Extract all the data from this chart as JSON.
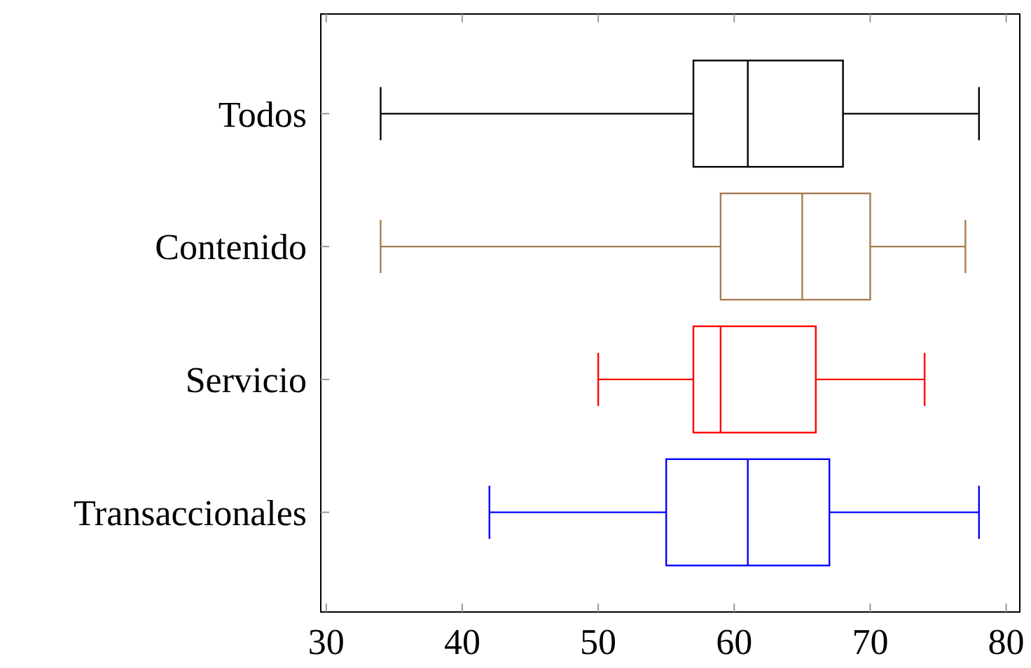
{
  "chart_data": {
    "type": "box",
    "orientation": "horizontal",
    "categories": [
      "Todos",
      "Contenido",
      "Servicio",
      "Transaccionales"
    ],
    "series": [
      {
        "color": "#000000",
        "boxes": [
          {
            "low": 34,
            "q1": 57,
            "median": 61,
            "q3": 68,
            "high": 78
          },
          null,
          null,
          null
        ]
      },
      {
        "color": "#a67c52",
        "boxes": [
          null,
          {
            "low": 34,
            "q1": 59,
            "median": 65,
            "q3": 70,
            "high": 77
          },
          null,
          null
        ]
      },
      {
        "color": "#ff0000",
        "boxes": [
          null,
          null,
          {
            "low": 50,
            "q1": 57,
            "median": 59,
            "q3": 66,
            "high": 74
          },
          null
        ]
      },
      {
        "color": "#0000ff",
        "boxes": [
          null,
          null,
          null,
          {
            "low": 42,
            "q1": 55,
            "median": 61,
            "q3": 67,
            "high": 78
          }
        ]
      }
    ],
    "xlim": [
      29.6,
      81
    ],
    "xticks": [
      30,
      40,
      50,
      60,
      70,
      80
    ],
    "grid": false
  }
}
